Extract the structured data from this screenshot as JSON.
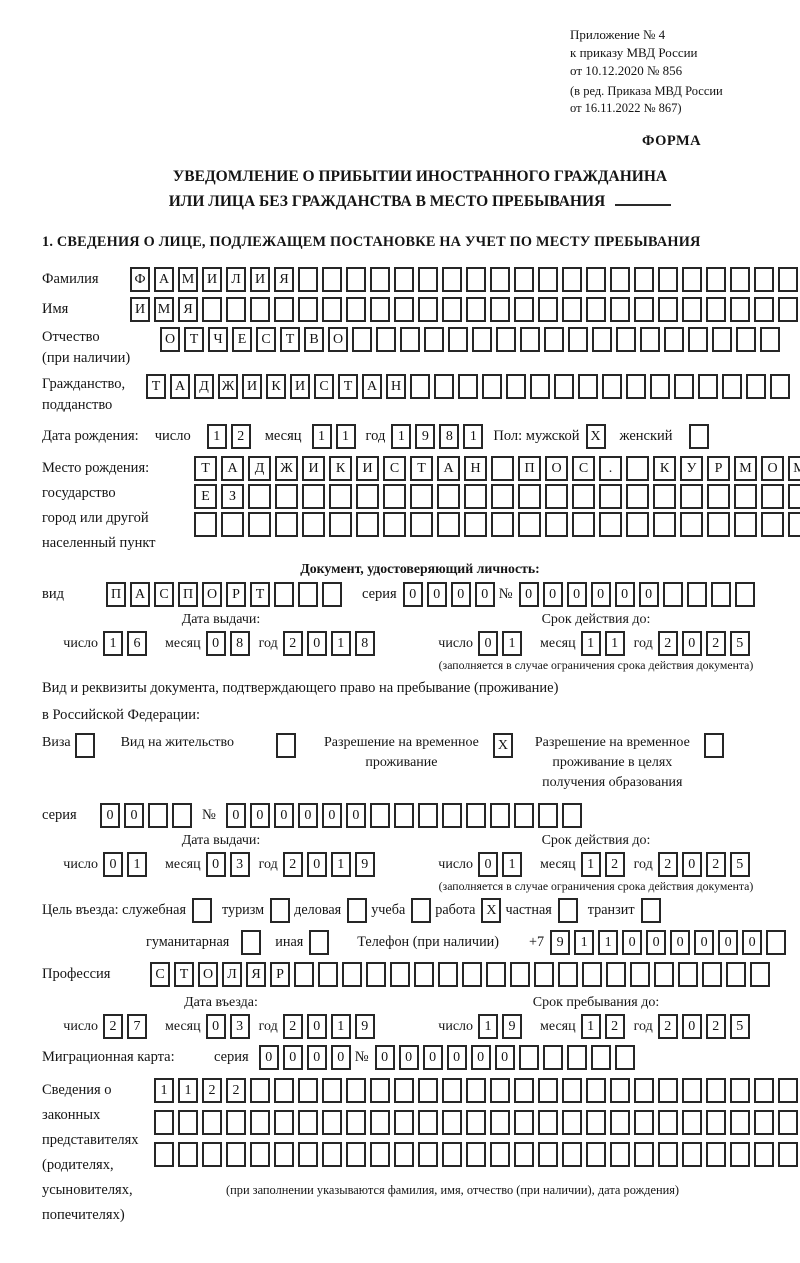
{
  "header": {
    "line1": "Приложение № 4",
    "line2": "к приказу МВД России",
    "line3": "от 10.12.2020 № 856",
    "sub1": "(в ред. Приказа МВД России",
    "sub2": "от 16.11.2022 № 867)",
    "form_label": "ФОРМА"
  },
  "title": {
    "line1": "УВЕДОМЛЕНИЕ О ПРИБЫТИИ ИНОСТРАННОГО ГРАЖДАНИНА",
    "line2": "ИЛИ ЛИЦА БЕЗ ГРАЖДАНСТВА В МЕСТО ПРЕБЫВАНИЯ"
  },
  "section1": {
    "heading": "1. СВЕДЕНИЯ О ЛИЦЕ, ПОДЛЕЖАЩЕМ ПОСТАНОВКЕ НА УЧЕТ ПО МЕСТУ ПРЕБЫВАНИЯ"
  },
  "labels": {
    "day": "число",
    "month": "месяц",
    "year": "год",
    "series": "серия",
    "number": "№",
    "issue_date": "Дата выдачи:",
    "valid_until": "Срок действия до:",
    "valid_note": "(заполняется в случае ограничения срока действия документа)"
  },
  "surname": {
    "label": "Фамилия",
    "value": "ФАМИЛИЯ",
    "length": 28
  },
  "firstname": {
    "label": "Имя",
    "value": "ИМЯ",
    "length": 28
  },
  "patronymic": {
    "label1": "Отчество",
    "label2": "(при наличии)",
    "value": "ОТЧЕСТВО",
    "length": 26
  },
  "citizenship": {
    "label1": "Гражданство,",
    "label2": "подданство",
    "value": "ТАДЖИКИСТАН",
    "length": 27
  },
  "birth_date": {
    "label": "Дата рождения:",
    "day": {
      "value": "12",
      "length": 2
    },
    "month": {
      "value": "11",
      "length": 2
    },
    "year": {
      "value": "1981",
      "length": 4
    },
    "sex_label": "Пол: мужской",
    "male": {
      "value": "X",
      "length": 1
    },
    "female_label": "женский",
    "female": {
      "value": "",
      "length": 1
    }
  },
  "birth_place": {
    "label1": "Место рождения:",
    "label2": "государство",
    "label3": "город или другой",
    "label4": "населенный пункт",
    "row1": {
      "value": "ТАДЖИКИСТАН ПОС. КУРМОМБ",
      "length": 24
    },
    "row2": {
      "value": "ЕЗ",
      "length": 24
    },
    "row3": {
      "value": "",
      "length": 24
    }
  },
  "id_doc": {
    "heading": "Документ, удостоверяющий личность:",
    "kind_label": "вид",
    "kind": {
      "value": "ПАСПОРТ",
      "length": 10
    },
    "series": {
      "value": "0000",
      "length": 4
    },
    "number": {
      "value": "000000",
      "length": 10
    },
    "issue": {
      "day": {
        "value": "16",
        "length": 2
      },
      "month": {
        "value": "08",
        "length": 2
      },
      "year": {
        "value": "2018",
        "length": 4
      }
    },
    "valid": {
      "day": {
        "value": "01",
        "length": 2
      },
      "month": {
        "value": "11",
        "length": 2
      },
      "year": {
        "value": "2025",
        "length": 4
      }
    }
  },
  "residence_doc": {
    "intro1": "Вид и реквизиты документа, подтверждающего право на пребывание (проживание)",
    "intro2": "в Российской Федерации:",
    "opt_visa": {
      "label": "Виза",
      "box": {
        "value": "",
        "length": 1
      }
    },
    "opt_residence_permit": {
      "label": "Вид на жительство",
      "box": {
        "value": "",
        "length": 1
      }
    },
    "opt_temp_permit": {
      "l1": "Разрешение на временное",
      "l2": "проживание",
      "box": {
        "value": "X",
        "length": 1
      }
    },
    "opt_edu_permit": {
      "l1": "Разрешение на временное",
      "l2": "проживание в целях",
      "l3": "получения образования",
      "box": {
        "value": "",
        "length": 1
      }
    },
    "series": {
      "value": "00",
      "length": 4
    },
    "number": {
      "value": "000000",
      "length": 15
    },
    "issue": {
      "day": {
        "value": "01",
        "length": 2
      },
      "month": {
        "value": "03",
        "length": 2
      },
      "year": {
        "value": "2019",
        "length": 4
      }
    },
    "valid": {
      "day": {
        "value": "01",
        "length": 2
      },
      "month": {
        "value": "12",
        "length": 2
      },
      "year": {
        "value": "2025",
        "length": 4
      }
    }
  },
  "purpose": {
    "intro": "Цель въезда: служебная",
    "official": {
      "value": "",
      "length": 1
    },
    "tourism_label": "туризм",
    "tourism": {
      "value": "",
      "length": 1
    },
    "business_label": "деловая",
    "business": {
      "value": "",
      "length": 1
    },
    "study_label": "учеба",
    "study": {
      "value": "",
      "length": 1
    },
    "work_label": "работа",
    "work": {
      "value": "X",
      "length": 1
    },
    "private_label": "частная",
    "private": {
      "value": "",
      "length": 1
    },
    "transit_label": "транзит",
    "transit": {
      "value": "",
      "length": 1
    },
    "humanitarian_label": "гуманитарная",
    "humanitarian": {
      "value": "",
      "length": 1
    },
    "other_label": "иная",
    "other": {
      "value": "",
      "length": 1
    }
  },
  "phone": {
    "label": "Телефон (при наличии)",
    "prefix": "+7",
    "digits": {
      "value": "911000000",
      "length": 10
    }
  },
  "profession": {
    "label": "Профессия",
    "value": "СТОЛЯР",
    "length": 26
  },
  "entry": {
    "head_left": "Дата въезда:",
    "head_right": "Срок пребывания до:",
    "date": {
      "day": {
        "value": "27",
        "length": 2
      },
      "month": {
        "value": "03",
        "length": 2
      },
      "year": {
        "value": "2019",
        "length": 4
      }
    },
    "until": {
      "day": {
        "value": "19",
        "length": 2
      },
      "month": {
        "value": "12",
        "length": 2
      },
      "year": {
        "value": "2025",
        "length": 4
      }
    }
  },
  "migration_card": {
    "label": "Миграционная карта:",
    "series": {
      "value": "0000",
      "length": 4
    },
    "number": {
      "value": "000000",
      "length": 11
    }
  },
  "representatives": {
    "label1": "Сведения о",
    "label2": "законных",
    "label3": "представителях",
    "label4": "(родителях,",
    "label5": "усыновителях,",
    "label6": "попечителях)",
    "row1": {
      "value": "1122",
      "length": 27
    },
    "row2": {
      "value": "",
      "length": 27
    },
    "row3": {
      "value": "",
      "length": 27
    },
    "note": "(при заполнении указываются фамилия, имя, отчество (при наличии), дата рождения)"
  },
  "colors": {
    "ink": "#141414",
    "box_border": "#262626",
    "page_bg": "#ffffff"
  }
}
